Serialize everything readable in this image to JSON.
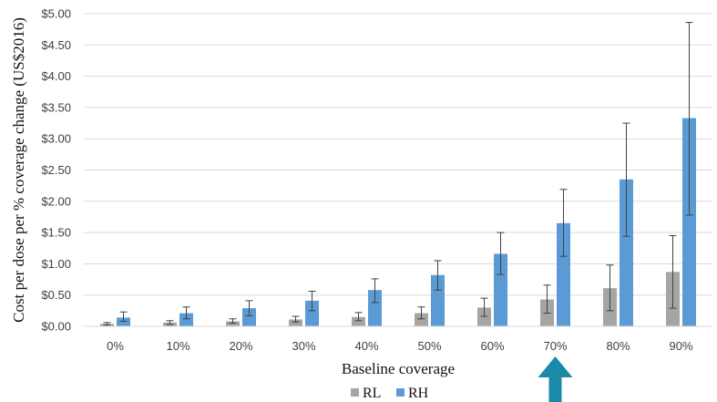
{
  "chart_data": {
    "type": "bar",
    "categories": [
      "0%",
      "10%",
      "20%",
      "30%",
      "40%",
      "50%",
      "60%",
      "70%",
      "80%",
      "90%"
    ],
    "series": [
      {
        "name": "RL",
        "color": "#a5a5a5",
        "values": [
          0.04,
          0.06,
          0.08,
          0.11,
          0.15,
          0.21,
          0.3,
          0.43,
          0.61,
          0.87
        ],
        "error_low": [
          0.02,
          0.03,
          0.05,
          0.07,
          0.09,
          0.12,
          0.16,
          0.21,
          0.25,
          0.29
        ],
        "error_high": [
          0.06,
          0.09,
          0.12,
          0.16,
          0.22,
          0.31,
          0.45,
          0.66,
          0.98,
          1.45
        ]
      },
      {
        "name": "RH",
        "color": "#5b9bd5",
        "values": [
          0.14,
          0.21,
          0.29,
          0.41,
          0.58,
          0.82,
          1.16,
          1.65,
          2.35,
          3.33
        ],
        "error_low": [
          0.08,
          0.12,
          0.17,
          0.25,
          0.38,
          0.58,
          0.83,
          1.12,
          1.44,
          1.78
        ],
        "error_high": [
          0.23,
          0.31,
          0.41,
          0.56,
          0.76,
          1.05,
          1.5,
          2.19,
          3.25,
          4.86
        ]
      }
    ],
    "ylabel": "Cost per dose per % coverage change (US$2016)",
    "xlabel": "Baseline coverage",
    "ylim": [
      0,
      5
    ],
    "y_ticks": [
      "$0.00",
      "$0.50",
      "$1.00",
      "$1.50",
      "$2.00",
      "$2.50",
      "$3.00",
      "$3.50",
      "$4.00",
      "$4.50",
      "$5.00"
    ],
    "y_tick_values": [
      0,
      0.5,
      1,
      1.5,
      2,
      2.5,
      3,
      3.5,
      4,
      4.5,
      5
    ],
    "grid": true,
    "legend_position": "bottom-center",
    "annotation": {
      "shape": "arrow-up",
      "points_to_category": "70%",
      "color": "#1b8aa8"
    }
  }
}
